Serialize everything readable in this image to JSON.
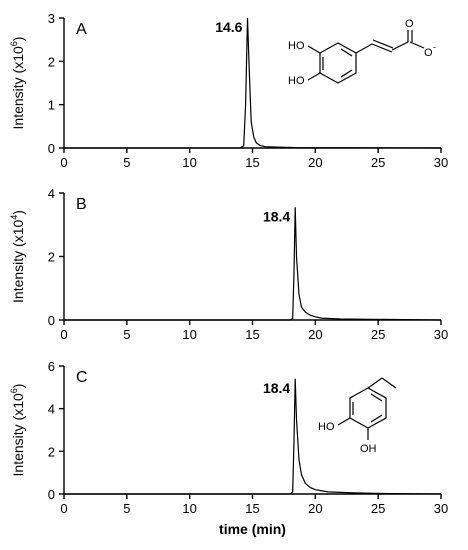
{
  "chart_data": [
    {
      "type": "line",
      "panel_label": "A",
      "ylabel": "Intensity (x10",
      "ylabel_exp": "6",
      "ylabel_close": ")",
      "xlim": [
        0,
        30
      ],
      "ylim": [
        0,
        3
      ],
      "xticks": [
        0,
        5,
        10,
        15,
        20,
        25,
        30
      ],
      "yticks": [
        0,
        1,
        2,
        3
      ],
      "peak_label": "14.6",
      "peak": {
        "x": 14.6,
        "y": 3.0
      },
      "series": [
        {
          "x": [
            0,
            14.0,
            14.3,
            14.45,
            14.6,
            14.75,
            14.9,
            15.1,
            15.3,
            15.6,
            16.0,
            17.0,
            18.5,
            30
          ],
          "y": [
            0,
            0,
            0.05,
            1.0,
            3.0,
            1.7,
            0.6,
            0.25,
            0.12,
            0.06,
            0.03,
            0.02,
            0.01,
            0
          ]
        }
      ],
      "structure_labels": {
        "oh1": "HO",
        "oh2": "HO",
        "o": "O",
        "o_minus": "O",
        "charge": "-"
      }
    },
    {
      "type": "line",
      "panel_label": "B",
      "ylabel": "Intensity (x10",
      "ylabel_exp": "4",
      "ylabel_close": ")",
      "xlim": [
        0,
        30
      ],
      "ylim": [
        0,
        4
      ],
      "xticks": [
        0,
        5,
        10,
        15,
        20,
        25,
        30
      ],
      "yticks": [
        0,
        2,
        4
      ],
      "peak_label": "18.4",
      "peak": {
        "x": 18.4,
        "y": 3.55
      },
      "series": [
        {
          "x": [
            0,
            18.0,
            18.2,
            18.3,
            18.4,
            18.5,
            18.7,
            18.9,
            19.2,
            19.6,
            20.0,
            20.5,
            22.0,
            30
          ],
          "y": [
            0,
            0,
            0.05,
            1.5,
            3.55,
            2.0,
            0.8,
            0.4,
            0.25,
            0.15,
            0.1,
            0.06,
            0.03,
            0
          ]
        }
      ]
    },
    {
      "type": "line",
      "panel_label": "C",
      "ylabel": "Intensity (x10",
      "ylabel_exp": "6",
      "ylabel_close": ")",
      "xlabel": "time (min)",
      "xlim": [
        0,
        30
      ],
      "ylim": [
        0,
        6
      ],
      "xticks": [
        0,
        5,
        10,
        15,
        20,
        25,
        30
      ],
      "yticks": [
        0,
        2,
        4,
        6
      ],
      "peak_label": "18.4",
      "peak": {
        "x": 18.4,
        "y": 5.4
      },
      "series": [
        {
          "x": [
            0,
            18.0,
            18.2,
            18.3,
            18.4,
            18.5,
            18.7,
            18.9,
            19.2,
            19.6,
            20.0,
            21.0,
            23.0,
            26.0,
            30
          ],
          "y": [
            0,
            0,
            0.1,
            2.5,
            5.4,
            3.5,
            1.6,
            0.9,
            0.5,
            0.3,
            0.2,
            0.1,
            0.05,
            0.02,
            0
          ]
        }
      ],
      "structure_labels": {
        "oh1": "HO",
        "oh2": "OH"
      }
    }
  ]
}
